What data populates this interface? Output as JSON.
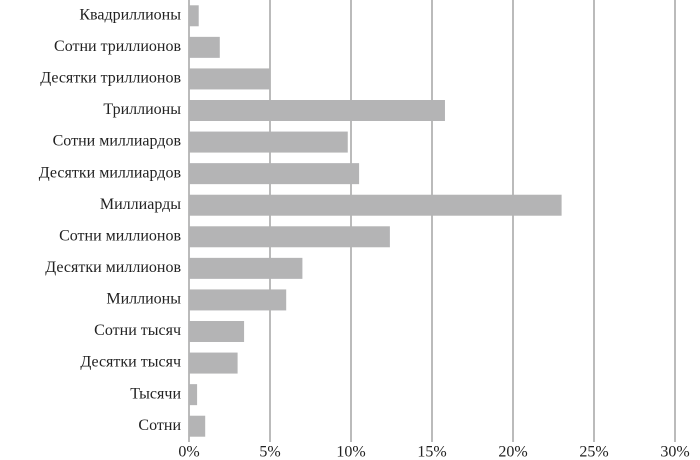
{
  "chart_data": {
    "type": "barh",
    "categories": [
      "Квадриллионы",
      "Сотни триллионов",
      "Десятки триллионов",
      "Триллионы",
      "Сотни миллиардов",
      "Десятки миллиардов",
      "Миллиарды",
      "Сотни миллионов",
      "Десятки миллионов",
      "Миллионы",
      "Сотни тысяч",
      "Десятки тысяч",
      "Тысячи",
      "Сотни"
    ],
    "values": [
      0.6,
      1.9,
      5.0,
      15.8,
      9.8,
      10.5,
      23.0,
      12.4,
      7.0,
      6.0,
      3.4,
      3.0,
      0.5,
      1.0
    ],
    "color": "#b4b4b5",
    "xlim": [
      0,
      30
    ],
    "xticks": [
      {
        "value": 0,
        "label": "0%"
      },
      {
        "value": 5,
        "label": "5%"
      },
      {
        "value": 10,
        "label": "10%"
      },
      {
        "value": 15,
        "label": "15%"
      },
      {
        "value": 20,
        "label": "20%"
      },
      {
        "value": 25,
        "label": "25%"
      },
      {
        "value": 30,
        "label": "30%"
      }
    ],
    "grid": true
  }
}
